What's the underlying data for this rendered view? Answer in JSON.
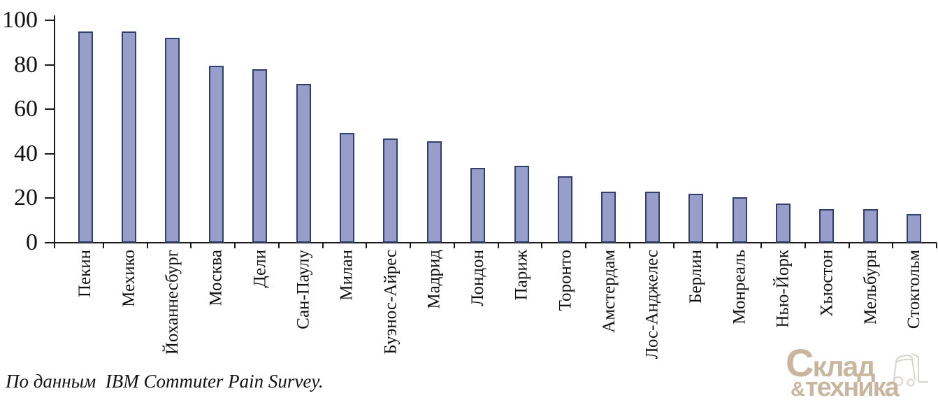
{
  "chart_data": {
    "type": "bar",
    "categories": [
      "Пекин",
      "Мехико",
      "Йоханнесбург",
      "Москва",
      "Дели",
      "Сан-Паулу",
      "Милан",
      "Буэнос-Айрес",
      "Мадрид",
      "Лондон",
      "Париж",
      "Торонто",
      "Амстердам",
      "Лос-Анджелес",
      "Берлин",
      "Монреаль",
      "Нью-Йорк",
      "Хьюстон",
      "Мельбурн",
      "Стокгольм"
    ],
    "values": [
      95,
      95,
      92,
      79.5,
      78,
      71.5,
      49.5,
      47,
      45.5,
      33.5,
      34.5,
      30,
      23,
      23,
      22,
      20.5,
      17.5,
      15,
      15,
      13
    ],
    "title": "",
    "xlabel": "",
    "ylabel": "",
    "ylim": [
      0,
      100
    ],
    "yticks": [
      0,
      20,
      40,
      60,
      80,
      100
    ],
    "grid": false,
    "legend_position": "none",
    "bar_fill": "#979ec9",
    "bar_border": "#32406e",
    "axis_color": "#1a1a1a"
  },
  "caption": "По данным  IBM Commuter Pain Survey.",
  "logo": {
    "line1_initial": "С",
    "line1_rest": "клад",
    "line2_amp": "&",
    "line2_text": "техника",
    "color": "#c9b69e",
    "icon": "forklift-icon",
    "icon_color": "#d8d5cf"
  }
}
